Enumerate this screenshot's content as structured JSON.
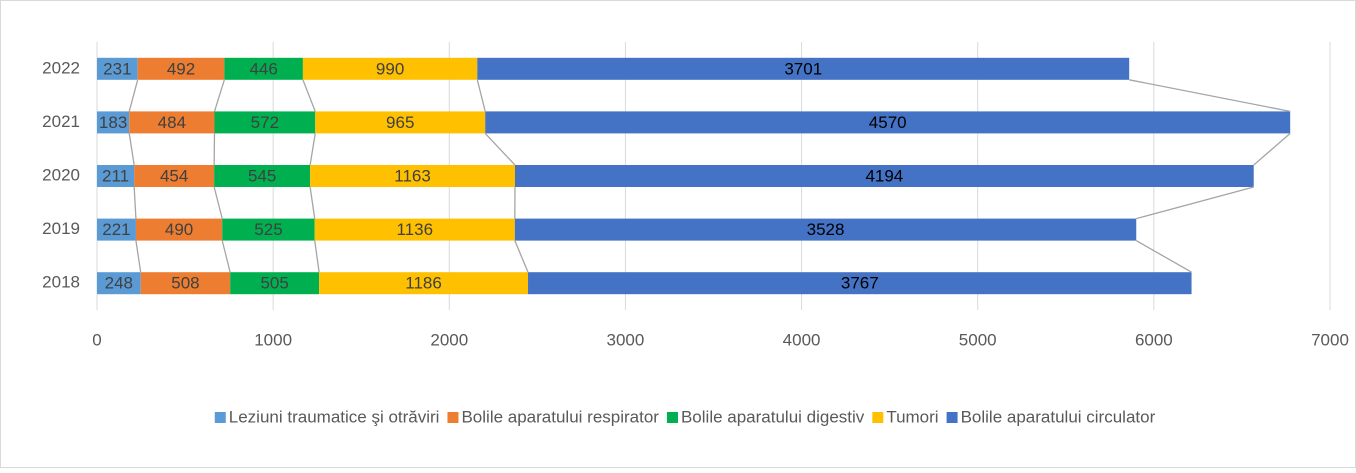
{
  "chart_data": {
    "type": "stacked_barh",
    "categories": [
      "2018",
      "2019",
      "2020",
      "2021",
      "2022"
    ],
    "series": [
      {
        "name": "Leziuni traumatice şi otrăviri",
        "color": "#5b9bd5",
        "values": [
          248,
          221,
          211,
          183,
          231
        ]
      },
      {
        "name": "Bolile aparatului respirator",
        "color": "#ed7d31",
        "values": [
          508,
          490,
          454,
          484,
          492
        ]
      },
      {
        "name": "Bolile aparatului digestiv",
        "color": "#00b050",
        "values": [
          505,
          525,
          545,
          572,
          446
        ]
      },
      {
        "name": "Tumori",
        "color": "#ffc000",
        "values": [
          1186,
          1136,
          1163,
          965,
          990
        ]
      },
      {
        "name": "Bolile aparatului circulator",
        "color": "#4472c4",
        "values": [
          3767,
          3528,
          4194,
          4570,
          3701
        ]
      }
    ],
    "xlim": [
      0,
      7000
    ],
    "xticks": [
      0,
      1000,
      2000,
      3000,
      4000,
      5000,
      6000,
      7000
    ],
    "grid": true,
    "legend": "bottom",
    "series_lines": true
  }
}
